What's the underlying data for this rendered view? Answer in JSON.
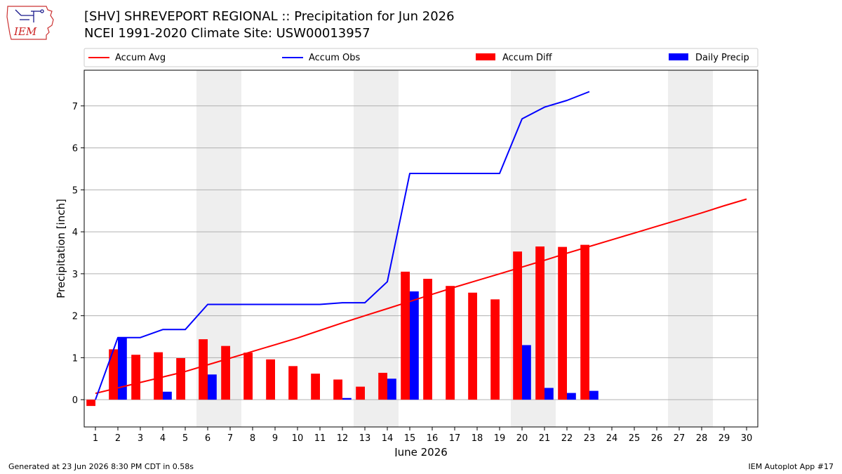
{
  "header": {
    "title": "[SHV] SHREVEPORT REGIONAL :: Precipitation for Jun 2026",
    "subtitle": "NCEI 1991-2020 Climate Site: USW00013957",
    "logo_text": "IEM"
  },
  "footer": {
    "left": "Generated at 23 Jun 2026 8:30 PM CDT in 0.58s",
    "right": "IEM Autoplot App #17"
  },
  "colors": {
    "accum_avg": "#ff0000",
    "accum_obs": "#0000ff",
    "accum_diff": "#ff0000",
    "daily_precip": "#0000ff",
    "weekend_shade": "#eeeeee",
    "grid": "#b0b0b0"
  },
  "chart_data": {
    "type": "bar",
    "xlabel": "June 2026",
    "ylabel": "Precipitation [inch]",
    "xlim": [
      0.5,
      30.5
    ],
    "ylim": [
      -0.65,
      7.85
    ],
    "yticks": [
      0,
      1,
      2,
      3,
      4,
      5,
      6,
      7
    ],
    "x": [
      1,
      2,
      3,
      4,
      5,
      6,
      7,
      8,
      9,
      10,
      11,
      12,
      13,
      14,
      15,
      16,
      17,
      18,
      19,
      20,
      21,
      22,
      23,
      24,
      25,
      26,
      27,
      28,
      29,
      30
    ],
    "grid": "horizontal",
    "legend_position": "top",
    "weekend_shading": [
      [
        6,
        7
      ],
      [
        13,
        14
      ],
      [
        20,
        21
      ],
      [
        27,
        28
      ]
    ],
    "series": [
      {
        "name": "Accum Avg",
        "type": "line",
        "x": [
          1,
          2,
          3,
          4,
          5,
          6,
          7,
          8,
          9,
          10,
          11,
          12,
          13,
          14,
          15,
          16,
          17,
          18,
          19,
          20,
          21,
          22,
          23,
          24,
          25,
          26,
          27,
          28,
          29,
          30
        ],
        "values": [
          0.15,
          0.28,
          0.41,
          0.54,
          0.67,
          0.83,
          0.99,
          1.15,
          1.31,
          1.47,
          1.65,
          1.83,
          2.0,
          2.17,
          2.34,
          2.51,
          2.68,
          2.84,
          3.0,
          3.16,
          3.32,
          3.49,
          3.65,
          3.81,
          3.97,
          4.13,
          4.29,
          4.45,
          4.62,
          4.78
        ]
      },
      {
        "name": "Accum Obs",
        "type": "line",
        "x": [
          1,
          2,
          3,
          4,
          5,
          6,
          7,
          8,
          9,
          10,
          11,
          12,
          13,
          14,
          15,
          16,
          17,
          18,
          19,
          20,
          21,
          22,
          23
        ],
        "values": [
          0.0,
          1.48,
          1.48,
          1.67,
          1.67,
          2.27,
          2.27,
          2.27,
          2.27,
          2.27,
          2.27,
          2.31,
          2.31,
          2.81,
          5.39,
          5.39,
          5.39,
          5.39,
          5.39,
          6.69,
          6.97,
          7.13,
          7.34
        ]
      },
      {
        "name": "Accum Diff",
        "type": "bar",
        "x": [
          1,
          2,
          3,
          4,
          5,
          6,
          7,
          8,
          9,
          10,
          11,
          12,
          13,
          14,
          15,
          16,
          17,
          18,
          19,
          20,
          21,
          22,
          23
        ],
        "values": [
          -0.15,
          1.2,
          1.07,
          1.13,
          0.99,
          1.44,
          1.28,
          1.12,
          0.96,
          0.8,
          0.62,
          0.48,
          0.31,
          0.64,
          3.05,
          2.88,
          2.71,
          2.55,
          2.39,
          3.53,
          3.65,
          3.64,
          3.69
        ]
      },
      {
        "name": "Daily Precip",
        "type": "bar",
        "x": [
          1,
          2,
          3,
          4,
          5,
          6,
          7,
          8,
          9,
          10,
          11,
          12,
          13,
          14,
          15,
          16,
          17,
          18,
          19,
          20,
          21,
          22,
          23
        ],
        "values": [
          0.0,
          1.48,
          0.0,
          0.19,
          0.0,
          0.6,
          0.0,
          0.0,
          0.0,
          0.0,
          0.0,
          0.04,
          0.0,
          0.5,
          2.58,
          0.0,
          0.0,
          0.0,
          0.0,
          1.3,
          0.28,
          0.16,
          0.21
        ]
      }
    ]
  }
}
